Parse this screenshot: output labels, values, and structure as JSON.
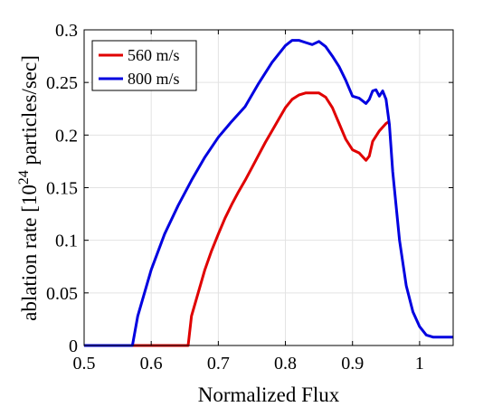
{
  "chart_data": {
    "type": "line",
    "title": "",
    "xlabel": "Normalized Flux",
    "ylabel_main": "ablation rate [10",
    "ylabel_exp": "24",
    "ylabel_tail": " particles/sec]",
    "xlim": [
      0.5,
      1.05
    ],
    "ylim": [
      0,
      0.3
    ],
    "xticks": [
      0.5,
      0.6,
      0.7,
      0.8,
      0.9,
      1
    ],
    "xtick_labels": [
      "0.5",
      "0.6",
      "0.7",
      "0.8",
      "0.9",
      "1"
    ],
    "yticks": [
      0,
      0.05,
      0.1,
      0.15,
      0.2,
      0.25,
      0.3
    ],
    "ytick_labels": [
      "0",
      "0.05",
      "0.1",
      "0.15",
      "0.2",
      "0.25",
      "0.3"
    ],
    "grid": true,
    "legend_position": "top-left",
    "series": [
      {
        "name": "560 m/s",
        "color": "#e00000",
        "x": [
          0.5,
          0.655,
          0.66,
          0.67,
          0.68,
          0.69,
          0.7,
          0.71,
          0.72,
          0.73,
          0.74,
          0.75,
          0.76,
          0.77,
          0.78,
          0.79,
          0.8,
          0.81,
          0.82,
          0.83,
          0.84,
          0.85,
          0.86,
          0.87,
          0.88,
          0.89,
          0.9,
          0.91,
          0.92,
          0.925,
          0.93,
          0.94,
          0.95,
          0.955
        ],
        "values": [
          0,
          0,
          0.028,
          0.05,
          0.072,
          0.09,
          0.106,
          0.121,
          0.134,
          0.146,
          0.157,
          0.169,
          0.181,
          0.193,
          0.204,
          0.215,
          0.226,
          0.234,
          0.238,
          0.24,
          0.24,
          0.24,
          0.236,
          0.226,
          0.211,
          0.196,
          0.186,
          0.183,
          0.176,
          0.18,
          0.194,
          0.204,
          0.211,
          0.213
        ]
      },
      {
        "name": "800 m/s",
        "color": "#0000e0",
        "x": [
          0.5,
          0.572,
          0.58,
          0.6,
          0.62,
          0.64,
          0.66,
          0.68,
          0.7,
          0.72,
          0.74,
          0.76,
          0.78,
          0.8,
          0.81,
          0.82,
          0.83,
          0.84,
          0.85,
          0.86,
          0.87,
          0.88,
          0.89,
          0.9,
          0.91,
          0.92,
          0.925,
          0.93,
          0.935,
          0.94,
          0.945,
          0.95,
          0.955,
          0.96,
          0.97,
          0.98,
          0.99,
          1.0,
          1.01,
          1.02,
          1.05
        ],
        "values": [
          0,
          0,
          0.028,
          0.072,
          0.106,
          0.133,
          0.157,
          0.179,
          0.198,
          0.213,
          0.227,
          0.249,
          0.269,
          0.285,
          0.29,
          0.29,
          0.288,
          0.286,
          0.289,
          0.284,
          0.275,
          0.265,
          0.252,
          0.237,
          0.235,
          0.23,
          0.234,
          0.242,
          0.243,
          0.237,
          0.242,
          0.234,
          0.21,
          0.165,
          0.1,
          0.057,
          0.032,
          0.018,
          0.01,
          0.008,
          0.008
        ]
      }
    ]
  }
}
